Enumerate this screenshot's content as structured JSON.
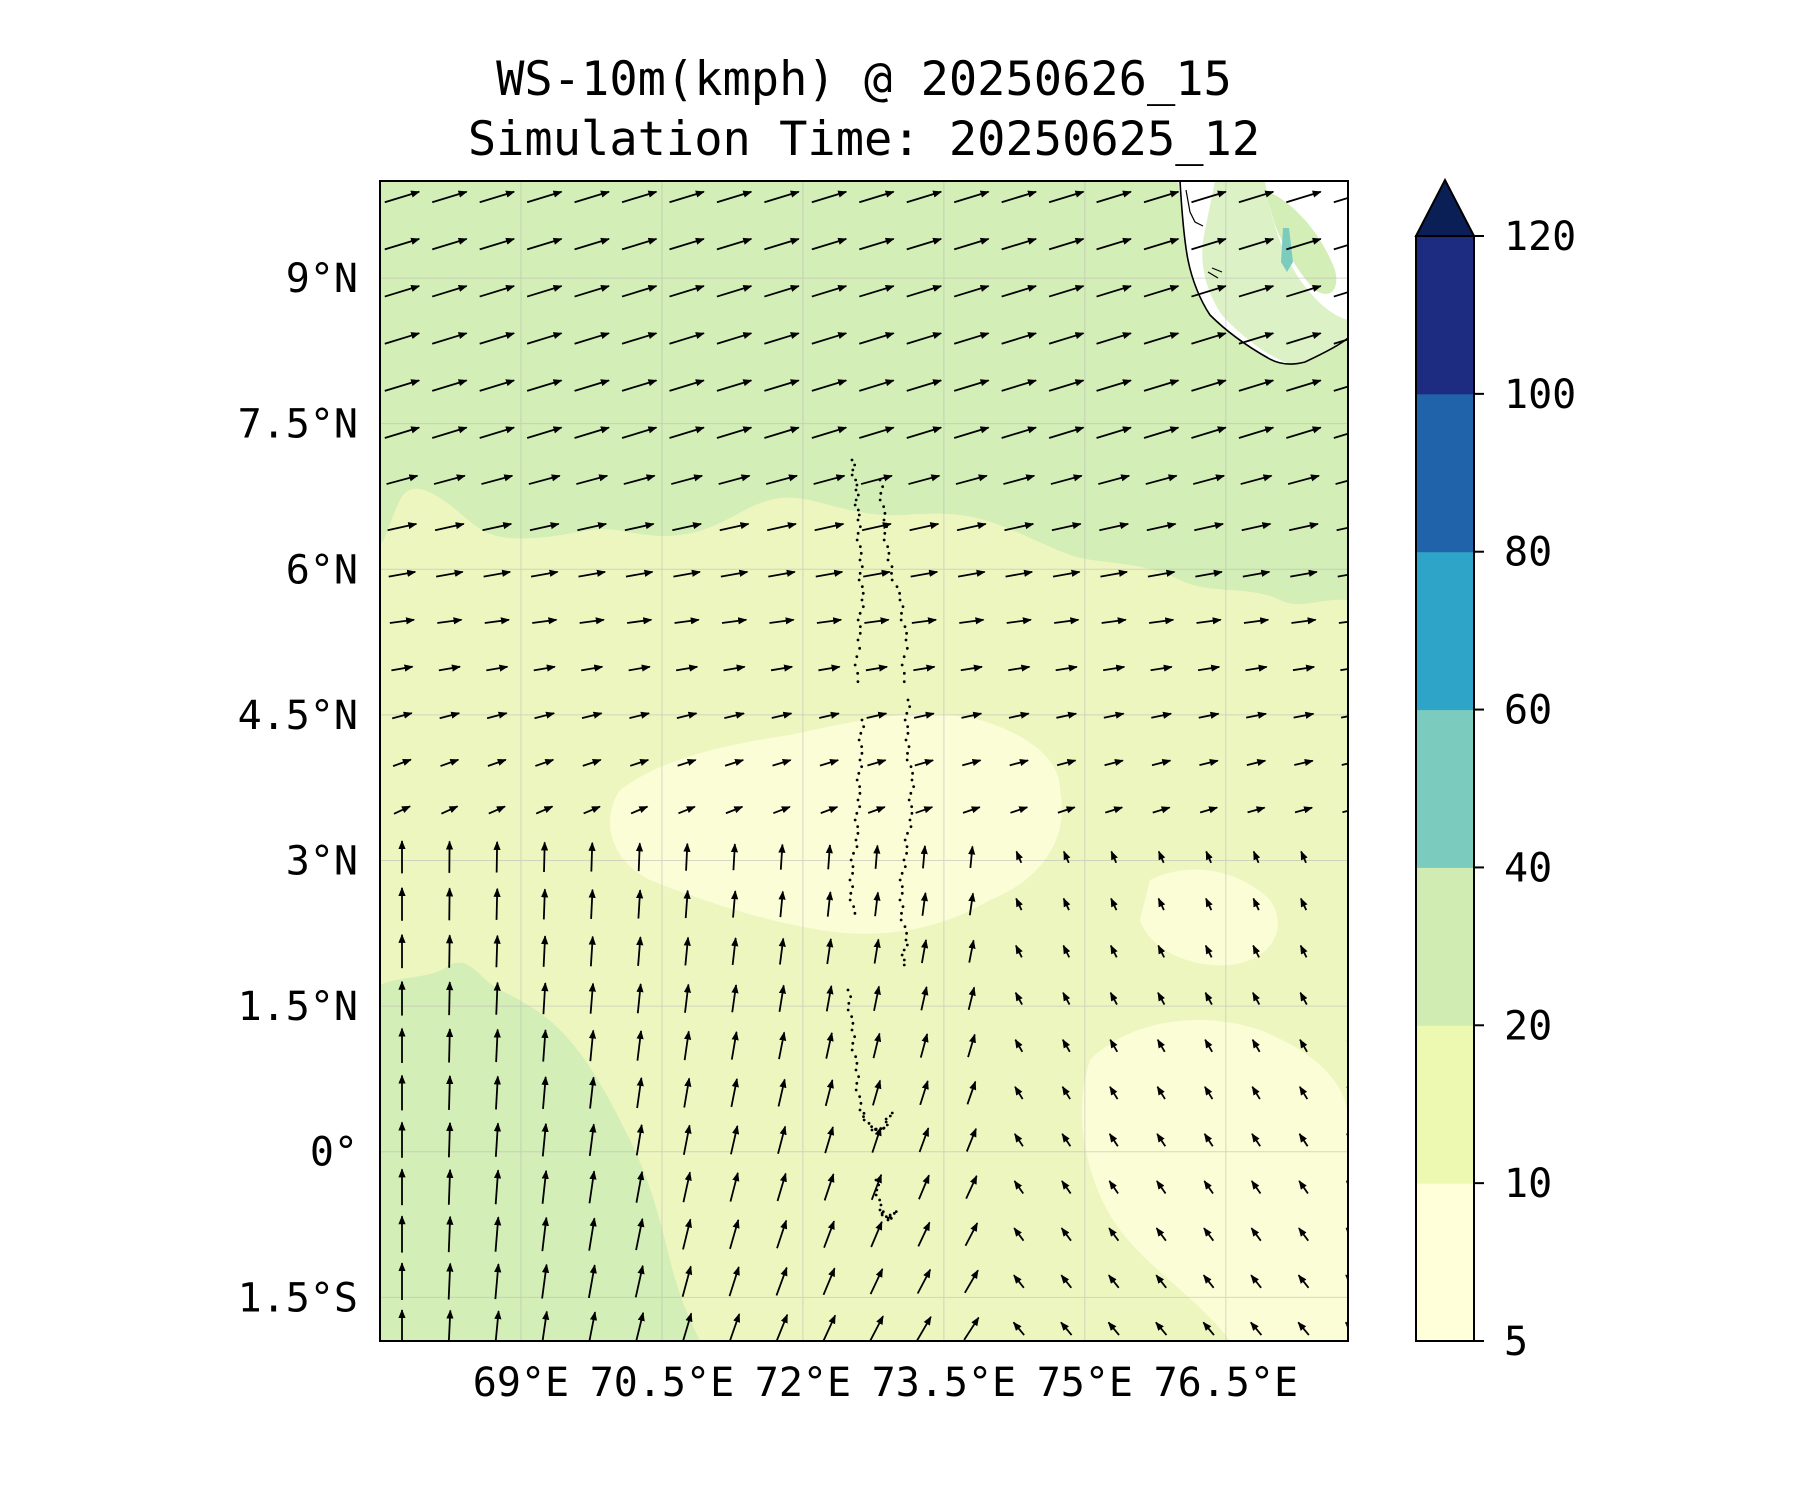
{
  "title": "WS-10m(kmph) @ 20250626_15",
  "subtitle": "Simulation Time: 20250625_12",
  "map": {
    "lon_range": [
      67.5,
      77.8
    ],
    "lat_range": [
      -1.95,
      10.0
    ],
    "lon_ticks": [
      {
        "value": 69,
        "label": "69°E"
      },
      {
        "value": 70.5,
        "label": "70.5°E"
      },
      {
        "value": 72,
        "label": "72°E"
      },
      {
        "value": 73.5,
        "label": "73.5°E"
      },
      {
        "value": 75,
        "label": "75°E"
      },
      {
        "value": 76.5,
        "label": "76.5°E"
      }
    ],
    "lat_ticks": [
      {
        "value": 9,
        "label": "9°N"
      },
      {
        "value": 7.5,
        "label": "7.5°N"
      },
      {
        "value": 6,
        "label": "6°N"
      },
      {
        "value": 4.5,
        "label": "4.5°N"
      },
      {
        "value": 3,
        "label": "3°N"
      },
      {
        "value": 1.5,
        "label": "1.5°N"
      },
      {
        "value": 0,
        "label": "0°"
      },
      {
        "value": -1.5,
        "label": "1.5°S"
      }
    ],
    "features": [
      "india-coastline",
      "maldives-atolls",
      "wind-vectors",
      "gridlines"
    ]
  },
  "colorbar": {
    "levels": [
      5,
      10,
      20,
      40,
      60,
      80,
      100,
      120
    ],
    "labels": [
      "5",
      "10",
      "20",
      "40",
      "60",
      "80",
      "100",
      "120"
    ],
    "colors": [
      "#ffffd9",
      "#edf8b1",
      "#d0ecb3",
      "#7bcbbf",
      "#2ea4c8",
      "#2163aa",
      "#1d2c81"
    ],
    "extend_color": "#0b1f57",
    "extend": "max"
  },
  "colors": {
    "band_lt10": "#fbfdd6",
    "band_10_20": "#eef6c0",
    "band_20_40": "#d3eeb6",
    "band_40_60": "#7bcbbf",
    "land": "#ffffff"
  }
}
